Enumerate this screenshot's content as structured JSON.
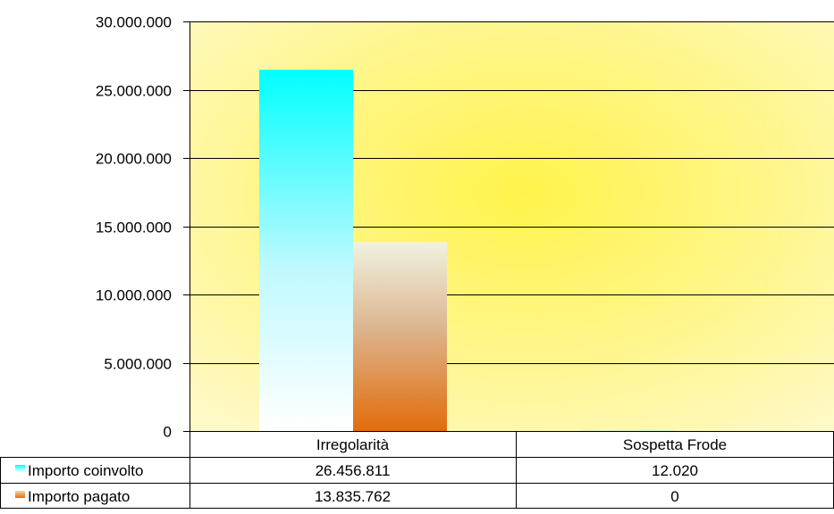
{
  "chart_data": {
    "type": "bar",
    "categories": [
      "Irregolarità",
      "Sospetta Frode"
    ],
    "series": [
      {
        "name": "Importo coinvolto",
        "values": [
          26456811,
          12020
        ],
        "value_labels": [
          "26.456.811",
          "12.020"
        ],
        "color": "#00ffff"
      },
      {
        "name": "Importo pagato",
        "values": [
          13835762,
          0
        ],
        "value_labels": [
          "13.835.762",
          "0"
        ],
        "color": "#e36c0a"
      }
    ],
    "ylim": [
      0,
      30000000
    ],
    "yticks": [
      0,
      5000000,
      10000000,
      15000000,
      20000000,
      25000000,
      30000000
    ],
    "ytick_labels": [
      "0",
      "5.000.000",
      "10.000.000",
      "15.000.000",
      "20.000.000",
      "25.000.000",
      "30.000.000"
    ],
    "grid": true,
    "legend": "data-table-left",
    "title": "",
    "xlabel": "",
    "ylabel": ""
  },
  "colors": {
    "plot_background": "#fff9c8",
    "plot_glow": "#fff34a",
    "gridline": "#000000"
  }
}
